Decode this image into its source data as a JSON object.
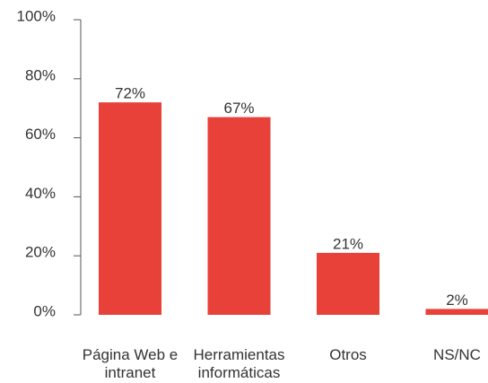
{
  "chart_data": {
    "type": "bar",
    "categories": [
      "Página Web e intranet",
      "Herramientas informáticas",
      "Otros",
      "NS/NC"
    ],
    "values": [
      72,
      67,
      21,
      2
    ],
    "value_labels": [
      "72%",
      "67%",
      "21%",
      "2%"
    ],
    "color": "#e8413a",
    "ylim": [
      0,
      100
    ],
    "yticks": [
      {
        "value": 0,
        "label": "0%"
      },
      {
        "value": 20,
        "label": "20%"
      },
      {
        "value": 40,
        "label": "40%"
      },
      {
        "value": 60,
        "label": "60%"
      },
      {
        "value": 80,
        "label": "80%"
      },
      {
        "value": 100,
        "label": "100%"
      }
    ],
    "grid": false
  }
}
